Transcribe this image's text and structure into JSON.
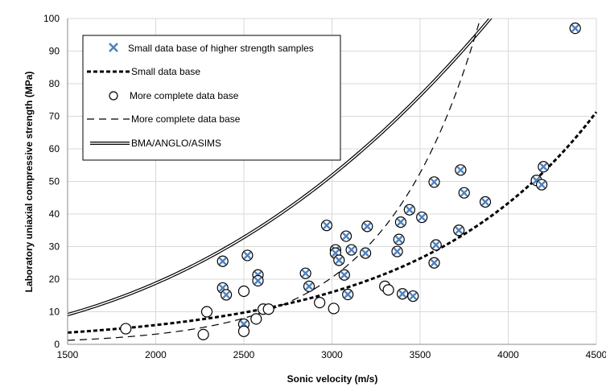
{
  "chart_data": {
    "type": "scatter",
    "xlabel": "Sonic velocity (m/s)",
    "ylabel": "Laboratory uniaxial compressive  strength (MPa)",
    "xlim": [
      1500,
      4500
    ],
    "ylim": [
      0,
      100
    ],
    "x_ticks": [
      1500,
      2000,
      2500,
      3000,
      3500,
      4000,
      4500
    ],
    "y_ticks": [
      0,
      10,
      20,
      30,
      40,
      50,
      60,
      70,
      80,
      90,
      100
    ],
    "grid": "vertical and horizontal major gridlines",
    "legend_position": "top-left",
    "colors": {
      "x_marker": "#4f81bd",
      "circle": "#000000",
      "grid": "#d9d9d9"
    },
    "series": [
      {
        "name": "Small data base of higher strength samples",
        "kind": "x-markers",
        "points": [
          [
            2380,
            25.5
          ],
          [
            2380,
            17.3
          ],
          [
            2400,
            15.2
          ],
          [
            2500,
            6.2
          ],
          [
            2520,
            27.3
          ],
          [
            2580,
            21.3
          ],
          [
            2580,
            19.5
          ],
          [
            2850,
            21.8
          ],
          [
            2870,
            17.8
          ],
          [
            2970,
            36.5
          ],
          [
            3020,
            29
          ],
          [
            3020,
            28
          ],
          [
            3040,
            25.8
          ],
          [
            3070,
            21.3
          ],
          [
            3080,
            33.2
          ],
          [
            3090,
            15.3
          ],
          [
            3110,
            29
          ],
          [
            3190,
            28
          ],
          [
            3200,
            36.2
          ],
          [
            3370,
            28.5
          ],
          [
            3380,
            32.2
          ],
          [
            3390,
            37.5
          ],
          [
            3400,
            15.5
          ],
          [
            3440,
            41.3
          ],
          [
            3460,
            14.8
          ],
          [
            3510,
            39
          ],
          [
            3580,
            49.8
          ],
          [
            3590,
            30.5
          ],
          [
            3580,
            25
          ],
          [
            3720,
            35
          ],
          [
            3730,
            53.5
          ],
          [
            3750,
            46.5
          ],
          [
            3870,
            43.7
          ],
          [
            4160,
            50.3
          ],
          [
            4190,
            49
          ],
          [
            4200,
            54.5
          ],
          [
            4380,
            97
          ]
        ]
      },
      {
        "name": "Small data base",
        "kind": "curve",
        "style": "bold-dashed",
        "formula": "y = 0.81 * exp(0.000995 * x)",
        "a": 0.81,
        "b": 0.000995
      },
      {
        "name": "More complete data base",
        "kind": "circles",
        "points": [
          [
            1830,
            4.8
          ],
          [
            2270,
            3
          ],
          [
            2290,
            10
          ],
          [
            2500,
            16.3
          ],
          [
            2500,
            4
          ],
          [
            2570,
            7.8
          ],
          [
            2610,
            10.8
          ],
          [
            2640,
            10.8
          ],
          [
            2930,
            12.8
          ],
          [
            3010,
            11
          ],
          [
            3300,
            17.8
          ],
          [
            3320,
            16.7
          ]
        ]
      },
      {
        "name": "More complete data base",
        "kind": "curve",
        "style": "thin-dashed",
        "formula": "y = 0.073 * exp(0.00188 * x)",
        "a": 0.073,
        "b": 0.00188
      },
      {
        "name": "BMA/ANGLO/ASIMS",
        "kind": "curve",
        "style": "double-line",
        "formula": "y = 9.95e-8 * x^2.507",
        "coef": 9.95e-08,
        "power": 2.507
      }
    ]
  }
}
